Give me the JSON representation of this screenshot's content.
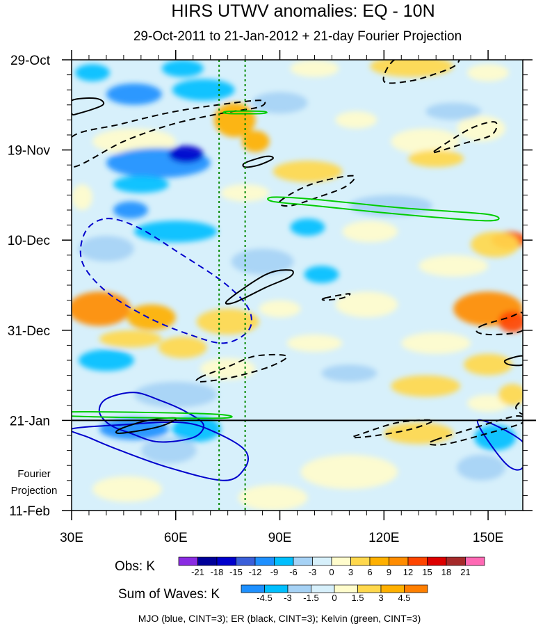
{
  "chart_data": {
    "type": "heatmap",
    "title": "HIRS UTWV anomalies: EQ - 10N",
    "subtitle": "29-Oct-2011 to 21-Jan-2012 + 21-day Fourier Projection",
    "x_range": [
      30,
      160
    ],
    "x_ticks": [
      30,
      60,
      90,
      120,
      150
    ],
    "x_tick_labels": [
      "30E",
      "60E",
      "90E",
      "120E",
      "150E"
    ],
    "y_range_days": [
      0,
      105
    ],
    "y_ticks_days": [
      0,
      21,
      42,
      63,
      84,
      105
    ],
    "y_tick_labels": [
      "29-Oct",
      "19-Nov",
      "10-Dec",
      "31-Dec",
      "21-Jan",
      "11-Feb"
    ],
    "observation_end_day": 84,
    "projection_label": [
      "Fourier",
      "Projection"
    ],
    "reference_lines_lon": [
      72.5,
      80
    ],
    "obs_colorbar": {
      "label": "Obs: K",
      "levels": [
        -21,
        -18,
        -15,
        -12,
        -9,
        -6,
        -3,
        0,
        3,
        6,
        9,
        12,
        15,
        18,
        21
      ],
      "colors": [
        "#8a2be2",
        "#000099",
        "#0000cc",
        "#3a5fd9",
        "#1e90ff",
        "#00bfff",
        "#a6d2f5",
        "#d7f0fb",
        "#fffccc",
        "#ffd84d",
        "#ffb000",
        "#ff8c00",
        "#ff4500",
        "#dd0000",
        "#a52a2a",
        "#ff69b4"
      ]
    },
    "waves_colorbar": {
      "label": "Sum of Waves: K",
      "levels": [
        -4.5,
        -3,
        -1.5,
        0,
        1.5,
        3,
        4.5
      ],
      "colors": [
        "#1e90ff",
        "#00bfff",
        "#a6d2f5",
        "#d7f0fb",
        "#fffccc",
        "#ffd84d",
        "#ffb000",
        "#ff7f00"
      ]
    },
    "anomaly_blobs": [
      {
        "lon": 36,
        "day": 3,
        "rl": 5,
        "rd": 2,
        "value": -6
      },
      {
        "lon": 48,
        "day": 8,
        "rl": 8,
        "rd": 2.5,
        "value": -9
      },
      {
        "lon": 68,
        "day": 7,
        "rl": 9,
        "rd": 2.5,
        "value": -6
      },
      {
        "lon": 62,
        "day": 2,
        "rl": 6,
        "rd": 2,
        "value": -6
      },
      {
        "lon": 100,
        "day": 2,
        "rl": 7,
        "rd": 2,
        "value": 3
      },
      {
        "lon": 128,
        "day": 1.5,
        "rl": 12,
        "rd": 2.5,
        "value": 6
      },
      {
        "lon": 150,
        "day": 3,
        "rl": 6,
        "rd": 2,
        "value": 3
      },
      {
        "lon": 90,
        "day": 10,
        "rl": 8,
        "rd": 2.5,
        "value": -3
      },
      {
        "lon": 77,
        "day": 14,
        "rl": 6,
        "rd": 4,
        "value": 9
      },
      {
        "lon": 83,
        "day": 19,
        "rl": 4,
        "rd": 2.5,
        "value": 9
      },
      {
        "lon": 48,
        "day": 19,
        "rl": 12,
        "rd": 3,
        "value": 3
      },
      {
        "lon": 55,
        "day": 24,
        "rl": 15,
        "rd": 3.5,
        "value": -9
      },
      {
        "lon": 63,
        "day": 22,
        "rl": 5,
        "rd": 2,
        "value": -15
      },
      {
        "lon": 50,
        "day": 29,
        "rl": 8,
        "rd": 2,
        "value": -6
      },
      {
        "lon": 33,
        "day": 32,
        "rl": 3,
        "rd": 3,
        "value": 3
      },
      {
        "lon": 98,
        "day": 26,
        "rl": 10,
        "rd": 2.5,
        "value": 6
      },
      {
        "lon": 132,
        "day": 19,
        "rl": 10,
        "rd": 3,
        "value": 3
      },
      {
        "lon": 135,
        "day": 23,
        "rl": 8,
        "rd": 2,
        "value": 6
      },
      {
        "lon": 148,
        "day": 16,
        "rl": 7,
        "rd": 3,
        "value": 3
      },
      {
        "lon": 140,
        "day": 12,
        "rl": 8,
        "rd": 2,
        "value": -3
      },
      {
        "lon": 112,
        "day": 14,
        "rl": 6,
        "rd": 2,
        "value": 3
      },
      {
        "lon": 122,
        "day": 34,
        "rl": 12,
        "rd": 2.5,
        "value": -3
      },
      {
        "lon": 80,
        "day": 31,
        "rl": 7,
        "rd": 2,
        "value": 3
      },
      {
        "lon": 47,
        "day": 35,
        "rl": 5,
        "rd": 2,
        "value": -9
      },
      {
        "lon": 60,
        "day": 40,
        "rl": 12,
        "rd": 2.5,
        "value": -6
      },
      {
        "lon": 98,
        "day": 39,
        "rl": 5,
        "rd": 2,
        "value": -6
      },
      {
        "lon": 116,
        "day": 40,
        "rl": 8,
        "rd": 2.5,
        "value": 3
      },
      {
        "lon": 156,
        "day": 42,
        "rl": 5,
        "rd": 2,
        "value": 15
      },
      {
        "lon": 152,
        "day": 43,
        "rl": 7,
        "rd": 3,
        "value": 6
      },
      {
        "lon": 40,
        "day": 44,
        "rl": 8,
        "rd": 3,
        "value": -3
      },
      {
        "lon": 85,
        "day": 47,
        "rl": 9,
        "rd": 3,
        "value": -3
      },
      {
        "lon": 102,
        "day": 50,
        "rl": 5,
        "rd": 2,
        "value": -6
      },
      {
        "lon": 140,
        "day": 48,
        "rl": 10,
        "rd": 2.5,
        "value": 3
      },
      {
        "lon": 38,
        "day": 58,
        "rl": 9,
        "rd": 4,
        "value": 12
      },
      {
        "lon": 53,
        "day": 60,
        "rl": 7,
        "rd": 3,
        "value": 9
      },
      {
        "lon": 75,
        "day": 61,
        "rl": 9,
        "rd": 3,
        "value": 6
      },
      {
        "lon": 90,
        "day": 58,
        "rl": 6,
        "rd": 2,
        "value": 3
      },
      {
        "lon": 115,
        "day": 57,
        "rl": 9,
        "rd": 3,
        "value": 3
      },
      {
        "lon": 150,
        "day": 58,
        "rl": 10,
        "rd": 4,
        "value": 12
      },
      {
        "lon": 157,
        "day": 61,
        "rl": 4,
        "rd": 2.5,
        "value": 15
      },
      {
        "lon": 47,
        "day": 65,
        "rl": 9,
        "rd": 2,
        "value": 6
      },
      {
        "lon": 62,
        "day": 67,
        "rl": 7,
        "rd": 2.5,
        "value": 6
      },
      {
        "lon": 100,
        "day": 66,
        "rl": 8,
        "rd": 2,
        "value": 3
      },
      {
        "lon": 135,
        "day": 66,
        "rl": 10,
        "rd": 2.5,
        "value": 3
      },
      {
        "lon": 40,
        "day": 70,
        "rl": 8,
        "rd": 2.5,
        "value": -6
      },
      {
        "lon": 75,
        "day": 72,
        "rl": 8,
        "rd": 2.5,
        "value": 3
      },
      {
        "lon": 110,
        "day": 73,
        "rl": 8,
        "rd": 2,
        "value": -3
      },
      {
        "lon": 150,
        "day": 71,
        "rl": 7,
        "rd": 2.5,
        "value": 6
      },
      {
        "lon": 132,
        "day": 76,
        "rl": 10,
        "rd": 2.5,
        "value": 6
      },
      {
        "lon": 60,
        "day": 78,
        "rl": 12,
        "rd": 3,
        "value": -3
      },
      {
        "lon": 150,
        "day": 80,
        "rl": 6,
        "rd": 2,
        "value": 3
      },
      {
        "lon": 157,
        "day": 78,
        "rl": 4,
        "rd": 2.5,
        "value": 6
      },
      {
        "lon": 48,
        "day": 86,
        "rl": 10,
        "rd": 2.5,
        "value": -9
      },
      {
        "lon": 66,
        "day": 86,
        "rl": 7,
        "rd": 3,
        "value": -3
      },
      {
        "lon": 130,
        "day": 87,
        "rl": 10,
        "rd": 2.5,
        "value": 3
      },
      {
        "lon": 152,
        "day": 88,
        "rl": 6,
        "rd": 3,
        "value": -3
      },
      {
        "lon": 58,
        "day": 91,
        "rl": 8,
        "rd": 3,
        "value": -1.5
      },
      {
        "lon": 110,
        "day": 96,
        "rl": 14,
        "rd": 4,
        "value": 1.5
      },
      {
        "lon": 148,
        "day": 95,
        "rl": 7,
        "rd": 3,
        "value": -1.5
      },
      {
        "lon": 46,
        "day": 100,
        "rl": 10,
        "rd": 3,
        "value": 1.5
      },
      {
        "lon": 88,
        "day": 102,
        "rl": 10,
        "rd": 3,
        "value": 1.5
      }
    ],
    "wave_contours": [
      {
        "wave": "MJO",
        "sign": "negative",
        "points": [
          [
            40,
            37
          ],
          [
            49,
            39
          ],
          [
            61,
            45
          ],
          [
            74,
            52
          ],
          [
            81,
            58
          ],
          [
            81,
            63
          ],
          [
            74,
            66
          ],
          [
            64,
            64
          ],
          [
            52,
            60
          ],
          [
            40,
            54
          ],
          [
            33,
            47
          ],
          [
            34,
            40
          ]
        ]
      },
      {
        "wave": "MJO",
        "sign": "positive",
        "points": [
          [
            48,
            77.5
          ],
          [
            56,
            79.5
          ],
          [
            63,
            82
          ],
          [
            68,
            85
          ],
          [
            65,
            88
          ],
          [
            55,
            89
          ],
          [
            47,
            87
          ],
          [
            41,
            85
          ],
          [
            38,
            82
          ],
          [
            40,
            79
          ]
        ]
      },
      {
        "wave": "MJO",
        "sign": "positive",
        "points": [
          [
            30,
            86
          ],
          [
            45,
            85
          ],
          [
            62,
            84.5
          ],
          [
            72,
            87
          ],
          [
            80,
            91
          ],
          [
            80,
            95
          ],
          [
            74,
            98
          ],
          [
            58,
            95
          ],
          [
            44,
            91
          ],
          [
            35,
            88
          ]
        ]
      },
      {
        "wave": "MJO",
        "sign": "positive",
        "points": [
          [
            147,
            84
          ],
          [
            160,
            89
          ],
          [
            160,
            95
          ],
          [
            155,
            94
          ]
        ]
      },
      {
        "wave": "ER",
        "sign": "positive",
        "points": [
          [
            30,
            9.5
          ],
          [
            37,
            9
          ],
          [
            39,
            10.5
          ],
          [
            32,
            12.5
          ],
          [
            30,
            12.5
          ]
        ]
      },
      {
        "wave": "ER",
        "sign": "negative",
        "points": [
          [
            30,
            18
          ],
          [
            44,
            15
          ],
          [
            60,
            12
          ],
          [
            77,
            10
          ],
          [
            85,
            9.5
          ],
          [
            84,
            11
          ],
          [
            73,
            12.5
          ],
          [
            59,
            15
          ],
          [
            45,
            19
          ],
          [
            30,
            25
          ]
        ]
      },
      {
        "wave": "ER",
        "sign": "positive",
        "points": [
          [
            80,
            24
          ],
          [
            86,
            22.5
          ],
          [
            88,
            23
          ],
          [
            84,
            24.5
          ],
          [
            80,
            25
          ]
        ]
      },
      {
        "wave": "ER",
        "sign": "negative",
        "points": [
          [
            90,
            33
          ],
          [
            99,
            29
          ],
          [
            111,
            27
          ],
          [
            109,
            29.5
          ],
          [
            101,
            32
          ],
          [
            93,
            34
          ]
        ]
      },
      {
        "wave": "ER",
        "sign": "negative",
        "points": [
          [
            123,
            0
          ],
          [
            132,
            -2
          ],
          [
            141,
            -2.5
          ],
          [
            141,
            1
          ],
          [
            134,
            3.5
          ],
          [
            127,
            5
          ],
          [
            120,
            5
          ]
        ]
      },
      {
        "wave": "ER",
        "sign": "negative",
        "points": [
          [
            135,
            21
          ],
          [
            145,
            16
          ],
          [
            152,
            14.5
          ],
          [
            151,
            17.5
          ],
          [
            143,
            19.5
          ],
          [
            135,
            21.5
          ]
        ]
      },
      {
        "wave": "ER",
        "sign": "positive",
        "points": [
          [
            75,
            56
          ],
          [
            86,
            50
          ],
          [
            93,
            49
          ],
          [
            93,
            50.5
          ],
          [
            86,
            53
          ],
          [
            77,
            56.5
          ]
        ]
      },
      {
        "wave": "ER",
        "sign": "negative",
        "points": [
          [
            103,
            55.5
          ],
          [
            110,
            54.5
          ],
          [
            108,
            55.5
          ],
          [
            103,
            56
          ]
        ]
      },
      {
        "wave": "ER",
        "sign": "negative",
        "points": [
          [
            67,
            74
          ],
          [
            75,
            71.5
          ],
          [
            83,
            69
          ],
          [
            92,
            69
          ],
          [
            87,
            71.5
          ],
          [
            76,
            74
          ],
          [
            67,
            75
          ]
        ]
      },
      {
        "wave": "ER",
        "sign": "positive",
        "points": [
          [
            44,
            86
          ],
          [
            52,
            84
          ],
          [
            60,
            83.5
          ],
          [
            55,
            85.5
          ],
          [
            44,
            87
          ]
        ]
      },
      {
        "wave": "ER",
        "sign": "negative",
        "points": [
          [
            148,
            62
          ],
          [
            156,
            60
          ],
          [
            160,
            59
          ],
          [
            160,
            63
          ],
          [
            152,
            64
          ],
          [
            147,
            63.5
          ]
        ]
      },
      {
        "wave": "ER",
        "sign": "positive",
        "points": [
          [
            155,
            70
          ],
          [
            160,
            69
          ],
          [
            160,
            71
          ],
          [
            156,
            71
          ]
        ]
      },
      {
        "wave": "ER",
        "sign": "negative",
        "points": [
          [
            114,
            87
          ],
          [
            124,
            84.5
          ],
          [
            134,
            84
          ],
          [
            128,
            86
          ],
          [
            118,
            87.5
          ],
          [
            111,
            88
          ]
        ]
      },
      {
        "wave": "ER",
        "sign": "negative",
        "points": [
          [
            135,
            88.5
          ],
          [
            145,
            86
          ],
          [
            158,
            83
          ],
          [
            160,
            84.5
          ],
          [
            150,
            87
          ],
          [
            138,
            89.5
          ],
          [
            133,
            89.5
          ]
        ]
      },
      {
        "wave": "ER",
        "sign": "negative",
        "points": [
          [
            158,
            81
          ],
          [
            160,
            79.5
          ],
          [
            160,
            82.5
          ]
        ]
      },
      {
        "wave": "Kelvin",
        "sign": "positive",
        "points": [
          [
            88,
            32
          ],
          [
            100,
            32.5
          ],
          [
            125,
            34.5
          ],
          [
            150,
            36
          ],
          [
            150,
            37.5
          ],
          [
            125,
            36
          ],
          [
            100,
            34
          ],
          [
            88,
            33
          ]
        ]
      },
      {
        "wave": "Kelvin",
        "sign": "positive",
        "points": [
          [
            75,
            12
          ],
          [
            85,
            12
          ],
          [
            85,
            12.5
          ],
          [
            75,
            12.5
          ]
        ]
      },
      {
        "wave": "Kelvin",
        "sign": "positive",
        "points": [
          [
            30,
            82
          ],
          [
            70,
            82.5
          ],
          [
            72,
            83.5
          ],
          [
            30,
            83
          ]
        ]
      }
    ]
  },
  "footer_text": "MJO (blue, CINT=3); ER (black, CINT=3); Kelvin (green, CINT=3)",
  "colors": {
    "mjo": "#0000cc",
    "er": "#000000",
    "kelvin": "#00cc00",
    "reference_line": "#008800",
    "background_field": "#d7f0fb"
  }
}
